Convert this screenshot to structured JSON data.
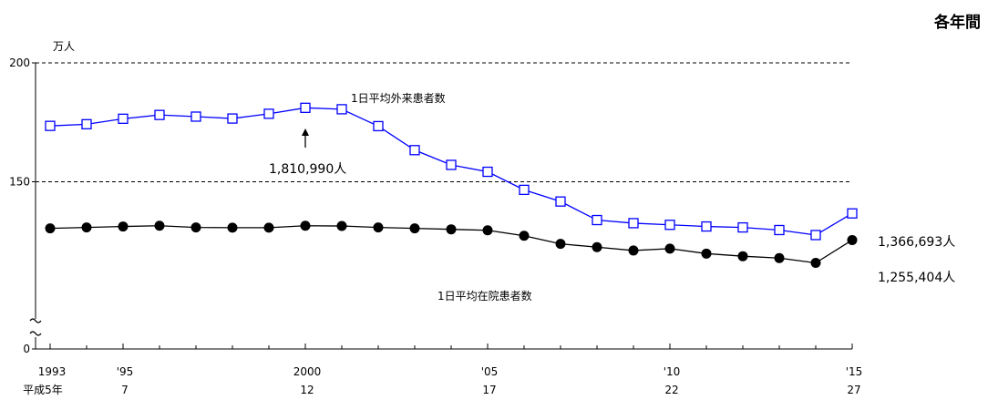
{
  "chart_data": {
    "type": "line",
    "period_label": "各年間",
    "yunit": "万人",
    "yticks": [
      "0",
      "150",
      "200"
    ],
    "xticks_year": [
      "1993",
      "'95",
      "2000",
      "'05",
      "'10",
      "'15"
    ],
    "xticks_era": [
      "平成5年",
      "7",
      "12",
      "17",
      "22",
      "27"
    ],
    "x": [
      1993,
      1994,
      1995,
      1996,
      1997,
      1998,
      1999,
      2000,
      2001,
      2002,
      2003,
      2004,
      2005,
      2006,
      2007,
      2008,
      2009,
      2010,
      2011,
      2012,
      2013,
      2014,
      2015
    ],
    "series": [
      {
        "name": "1日平均外来患者数",
        "color": "#0000ff",
        "marker": "square-open",
        "values": [
          173.5,
          174.2,
          176.5,
          178.1,
          177.4,
          176.6,
          178.6,
          181.1,
          180.5,
          173.4,
          163.3,
          157.1,
          154.2,
          146.6,
          141.7,
          133.9,
          132.6,
          131.9,
          131.2,
          130.8,
          129.7,
          127.6,
          136.7
        ]
      },
      {
        "name": "1日平均在院患者数",
        "color": "#000000",
        "marker": "circle-filled",
        "values": [
          130.4,
          130.8,
          131.2,
          131.5,
          130.8,
          130.7,
          130.7,
          131.5,
          131.4,
          130.8,
          130.4,
          130.0,
          129.6,
          127.3,
          123.9,
          122.5,
          121.1,
          121.9,
          119.8,
          118.7,
          117.9,
          115.9,
          125.5
        ]
      }
    ],
    "annotations": [
      {
        "text": "1,810,990人",
        "x": 2000,
        "y": 181.1
      },
      {
        "text": "1,366,693人",
        "x": 2015,
        "y": 136.7
      },
      {
        "text": "1,255,404人",
        "x": 2015,
        "y": 125.5
      }
    ]
  }
}
